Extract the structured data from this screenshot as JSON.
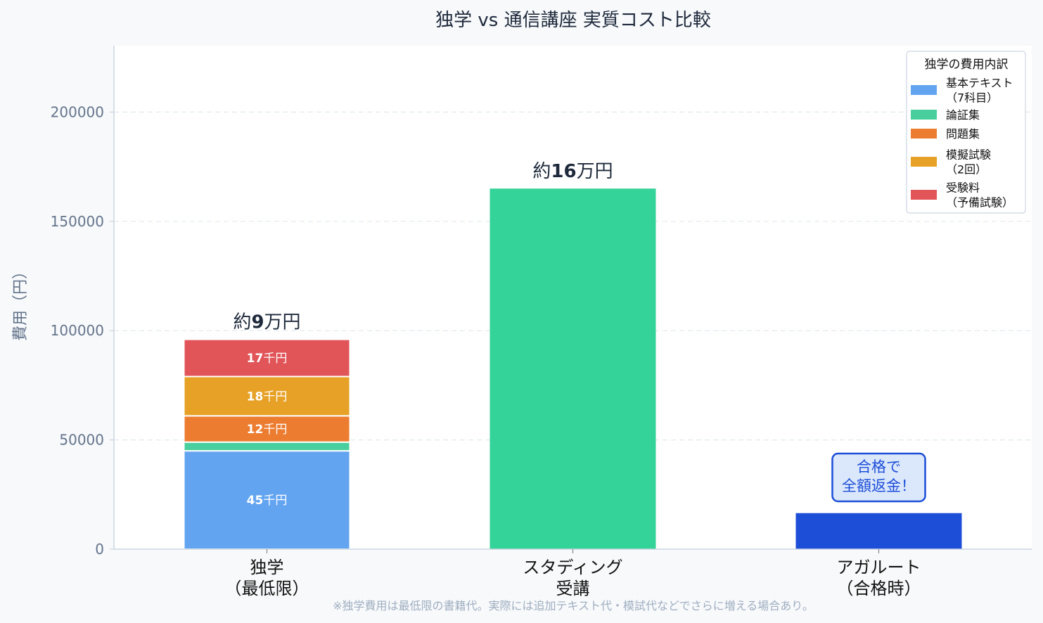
{
  "chart_data": {
    "type": "bar",
    "title": "独学 vs 通信講座 実質コスト比較",
    "ylabel": "費用（円）",
    "ylim": [
      0,
      230000
    ],
    "yticks": [
      0,
      50000,
      100000,
      150000,
      200000
    ],
    "grid": true,
    "categories": [
      "独学\n（最低限）",
      "スタディング\n受講",
      "アガルート\n（合格時）"
    ],
    "stacked_bar": {
      "category_index": 0,
      "segments": [
        {
          "name": "基本テキスト\n（7科目）",
          "value": 45000,
          "label_num": "45",
          "label_unit": "千円",
          "color": "#63a4f1"
        },
        {
          "name": "論証集",
          "value": 4000,
          "label_num": "",
          "label_unit": "",
          "color": "#48cf9d"
        },
        {
          "name": "問題集",
          "value": 12000,
          "label_num": "12",
          "label_unit": "千円",
          "color": "#ec7c30"
        },
        {
          "name": "模擬試験\n（2回）",
          "value": 18000,
          "label_num": "18",
          "label_unit": "千円",
          "color": "#e6a126"
        },
        {
          "name": "受験料\n（予備試験）",
          "value": 17000,
          "label_num": "17",
          "label_unit": "千円",
          "color": "#e15458"
        }
      ],
      "total_label": {
        "prefix": "約",
        "num": "9",
        "suffix": "万円"
      }
    },
    "simple_bars": [
      {
        "category_index": 1,
        "value": 165000,
        "color": "#34d399",
        "total_label": {
          "prefix": "約",
          "num": "16",
          "suffix": "万円"
        }
      },
      {
        "category_index": 2,
        "value": 16500,
        "color": "#1d4ed8",
        "total_label": null
      }
    ],
    "annotation": {
      "category_index": 2,
      "text": "合格で\n全額返金！",
      "box_fill": "#dbe8fb",
      "box_stroke": "#1d4ed8"
    },
    "legend": {
      "title": "独学の費用内訳",
      "placement": "top-right"
    },
    "note": "※独学費用は最低限の書籍代。実際には追加テキスト代・模試代などでさらに増える場合あり。",
    "colors": {
      "axis": "#cbd5e1",
      "grid": "#e2e8f0",
      "text": "#1e293b",
      "tick": "#64748b"
    }
  }
}
